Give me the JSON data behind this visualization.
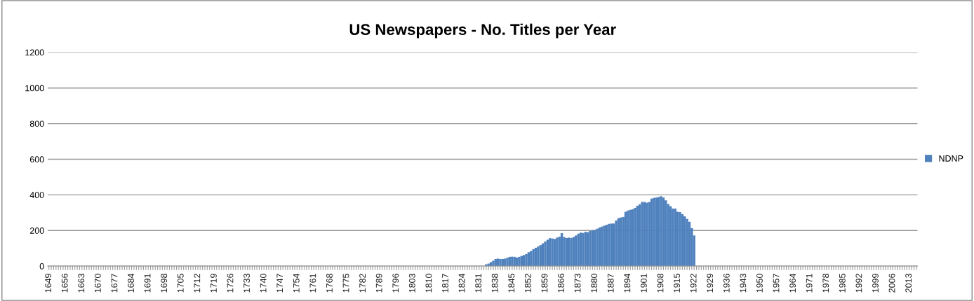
{
  "chart_data": {
    "type": "bar",
    "title": "US Newspapers - No. Titles per Year",
    "categories": [
      "1649",
      null,
      null,
      null,
      null,
      null,
      null,
      "1656",
      null,
      null,
      null,
      null,
      null,
      null,
      "1663",
      null,
      null,
      null,
      null,
      null,
      null,
      "1670",
      null,
      null,
      null,
      null,
      null,
      null,
      "1677",
      null,
      null,
      null,
      null,
      null,
      null,
      "1684",
      null,
      null,
      null,
      null,
      null,
      null,
      "1691",
      null,
      null,
      null,
      null,
      null,
      null,
      "1698",
      null,
      null,
      null,
      null,
      null,
      null,
      "1705",
      null,
      null,
      null,
      null,
      null,
      null,
      "1712",
      null,
      null,
      null,
      null,
      null,
      null,
      "1719",
      null,
      null,
      null,
      null,
      null,
      null,
      "1726",
      null,
      null,
      null,
      null,
      null,
      null,
      "1733",
      null,
      null,
      null,
      null,
      null,
      null,
      "1740",
      null,
      null,
      null,
      null,
      null,
      null,
      "1747",
      null,
      null,
      null,
      null,
      null,
      null,
      "1754",
      null,
      null,
      null,
      null,
      null,
      null,
      "1761",
      null,
      null,
      null,
      null,
      null,
      null,
      "1768",
      null,
      null,
      null,
      null,
      null,
      null,
      "1775",
      null,
      null,
      null,
      null,
      null,
      null,
      "1782",
      null,
      null,
      null,
      null,
      null,
      null,
      "1789",
      null,
      null,
      null,
      null,
      null,
      null,
      "1796",
      null,
      null,
      null,
      null,
      null,
      null,
      "1803",
      null,
      null,
      null,
      null,
      null,
      null,
      "1810",
      null,
      null,
      null,
      null,
      null,
      null,
      "1817",
      null,
      null,
      null,
      null,
      null,
      null,
      "1824",
      null,
      null,
      null,
      null,
      null,
      null,
      "1831",
      null,
      null,
      null,
      null,
      null,
      null,
      "1838",
      null,
      null,
      null,
      null,
      null,
      null,
      "1845",
      null,
      null,
      null,
      null,
      null,
      null,
      "1852",
      null,
      null,
      null,
      null,
      null,
      null,
      "1859",
      null,
      null,
      null,
      null,
      null,
      null,
      "1866",
      null,
      null,
      null,
      null,
      null,
      null,
      "1873",
      null,
      null,
      null,
      null,
      null,
      null,
      "1880",
      null,
      null,
      null,
      null,
      null,
      null,
      "1887",
      null,
      null,
      null,
      null,
      null,
      null,
      "1894",
      null,
      null,
      null,
      null,
      null,
      null,
      "1901",
      null,
      null,
      null,
      null,
      null,
      null,
      "1908",
      null,
      null,
      null,
      null,
      null,
      null,
      "1915",
      null,
      null,
      null,
      null,
      null,
      null,
      "1922",
      null,
      null,
      null,
      null,
      null,
      null,
      "1929",
      null,
      null,
      null,
      null,
      null,
      null,
      "1936",
      null,
      null,
      null,
      null,
      null,
      null,
      "1943",
      null,
      null,
      null,
      null,
      null,
      null,
      "1950",
      null,
      null,
      null,
      null,
      null,
      null,
      "1957",
      null,
      null,
      null,
      null,
      null,
      null,
      "1964",
      null,
      null,
      null,
      null,
      null,
      null,
      "1971",
      null,
      null,
      null,
      null,
      null,
      null,
      "1978",
      null,
      null,
      null,
      null,
      null,
      null,
      "1985",
      null,
      null,
      null,
      null,
      null,
      null,
      "1992",
      null,
      null,
      null,
      null,
      null,
      null,
      "1999",
      null,
      null,
      null,
      null,
      null,
      null,
      "2006",
      null,
      null,
      null,
      null,
      null,
      null,
      "2013",
      null,
      null,
      null
    ],
    "series": [
      {
        "name": "NDNP",
        "color": "#4f81bd",
        "values": [
          null,
          null,
          null,
          null,
          null,
          null,
          null,
          null,
          null,
          null,
          null,
          null,
          null,
          null,
          null,
          null,
          null,
          null,
          null,
          null,
          null,
          null,
          null,
          null,
          null,
          null,
          null,
          null,
          null,
          null,
          null,
          null,
          null,
          null,
          null,
          null,
          null,
          null,
          null,
          null,
          null,
          null,
          null,
          null,
          null,
          null,
          null,
          null,
          null,
          null,
          null,
          null,
          null,
          null,
          null,
          null,
          null,
          null,
          null,
          null,
          null,
          null,
          null,
          null,
          null,
          null,
          null,
          null,
          null,
          null,
          null,
          null,
          null,
          null,
          null,
          null,
          null,
          null,
          null,
          null,
          null,
          null,
          null,
          null,
          null,
          null,
          null,
          null,
          null,
          null,
          null,
          null,
          null,
          null,
          null,
          null,
          null,
          null,
          null,
          null,
          null,
          null,
          null,
          null,
          null,
          null,
          null,
          null,
          null,
          null,
          null,
          null,
          null,
          null,
          null,
          null,
          null,
          null,
          null,
          null,
          null,
          null,
          null,
          null,
          null,
          null,
          null,
          null,
          null,
          null,
          null,
          null,
          null,
          null,
          null,
          null,
          null,
          null,
          null,
          null,
          null,
          null,
          null,
          null,
          null,
          null,
          null,
          null,
          null,
          null,
          null,
          null,
          null,
          null,
          null,
          null,
          null,
          null,
          null,
          null,
          null,
          null,
          null,
          null,
          null,
          null,
          null,
          null,
          null,
          null,
          null,
          null,
          null,
          null,
          null,
          null,
          null,
          null,
          null,
          null,
          null,
          null,
          null,
          null,
          null,
          10,
          14,
          22,
          30,
          40,
          42,
          40,
          40,
          42,
          47,
          52,
          53,
          52,
          48,
          52,
          57,
          62,
          68,
          78,
          85,
          95,
          103,
          110,
          118,
          128,
          138,
          148,
          157,
          155,
          152,
          160,
          165,
          185,
          163,
          158,
          160,
          158,
          163,
          172,
          182,
          188,
          186,
          192,
          190,
          197,
          200,
          203,
          210,
          217,
          222,
          227,
          232,
          237,
          239,
          239,
          256,
          269,
          273,
          276,
          305,
          312,
          316,
          319,
          327,
          339,
          347,
          360,
          360,
          356,
          360,
          379,
          383,
          385,
          388,
          392,
          385,
          369,
          349,
          336,
          323,
          323,
          305,
          303,
          292,
          279,
          265,
          249,
          213,
          172,
          null,
          null,
          null,
          null,
          null,
          null,
          null,
          null,
          null,
          null,
          null,
          null,
          null,
          null,
          null,
          null,
          null,
          null,
          null,
          null,
          null,
          null,
          null,
          null,
          null,
          null,
          null,
          null,
          null,
          null,
          null,
          null,
          null,
          null,
          null,
          null,
          null,
          null,
          null,
          null,
          null,
          null,
          null,
          null,
          null,
          null,
          null,
          null,
          null,
          null,
          null,
          null,
          null,
          null,
          null,
          null,
          null,
          null,
          null,
          null,
          null,
          null,
          null,
          null,
          null,
          null,
          null,
          null,
          null,
          null,
          null,
          null,
          null,
          null,
          null,
          null,
          null,
          null,
          null,
          null,
          null,
          null,
          null,
          null,
          null,
          null,
          null,
          null,
          null,
          null,
          null,
          null,
          null,
          null
        ]
      }
    ],
    "ylim": [
      0,
      1200
    ],
    "yticks": [
      0,
      200,
      400,
      600,
      800,
      1000,
      1200
    ],
    "grid": "y",
    "legend": "right"
  }
}
